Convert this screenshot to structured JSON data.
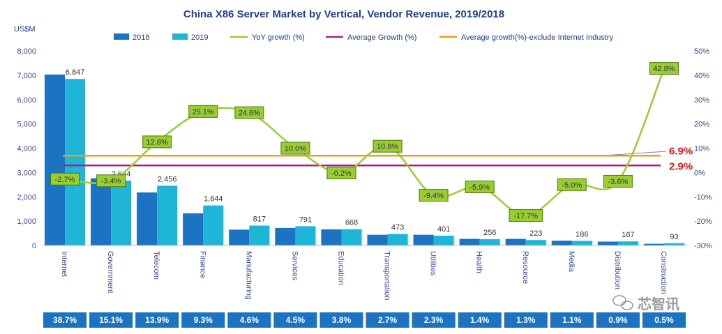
{
  "chart_data": {
    "type": "bar+line",
    "title": "China X86 Server Market by Vertical, Vendor Revenue, 2019/2018",
    "y_unit_label": "US$M",
    "ylim": [
      0,
      8000
    ],
    "y_ticks": [
      "0",
      "1,000",
      "2,000",
      "3,000",
      "4,000",
      "5,000",
      "6,000",
      "7,000",
      "8,000"
    ],
    "y2lim": [
      -30,
      50
    ],
    "y2_ticks": [
      "-30%",
      "-20%",
      "-10%",
      "0%",
      "10%",
      "20%",
      "30%",
      "40%",
      "50%"
    ],
    "categories": [
      "Internet",
      "Government",
      "Telecom",
      "Finance",
      "Manufacturing",
      "Services",
      "Education",
      "Transportation",
      "Utilities",
      "Health",
      "Resource",
      "Media",
      "Distribution",
      "Construction"
    ],
    "series": [
      {
        "name": "2018",
        "values": [
          7030,
          2760,
          2180,
          1320,
          650,
          720,
          660,
          440,
          440,
          270,
          270,
          196,
          158,
          70
        ]
      },
      {
        "name": "2019",
        "values": [
          6847,
          2664,
          2456,
          1644,
          817,
          791,
          668,
          473,
          401,
          256,
          223,
          186,
          167,
          93
        ],
        "labels": [
          "6,847",
          "2,664",
          "2,456",
          "1,644",
          "817",
          "791",
          "668",
          "473",
          "401",
          "256",
          "223",
          "186",
          "167",
          "93"
        ]
      },
      {
        "name": "YoY growth (%)",
        "values": [
          -2.7,
          -3.4,
          12.6,
          25.1,
          24.6,
          10.0,
          -0.2,
          10.8,
          -9.4,
          -5.9,
          -17.7,
          -5.0,
          -3.6,
          42.8
        ],
        "labels": [
          "-2.7%",
          "-3.4%",
          "12.6%",
          "25.1%",
          "24.6%",
          "10.0%",
          "-0.2%",
          "10.8%",
          "-9.4%",
          "-5.9%",
          "-17.7%",
          "-5.0%",
          "-3.6%",
          "42.8%"
        ]
      },
      {
        "name": "Average Growth (%)",
        "value": 2.9,
        "label": "2.9%"
      },
      {
        "name": "Average growth(%)-exclude Internet Industry",
        "value": 6.9,
        "label": "6.9%"
      }
    ],
    "market_share": [
      "38.7%",
      "15.1%",
      "13.9%",
      "9.3%",
      "4.6%",
      "4.5%",
      "3.8%",
      "2.7%",
      "2.3%",
      "1.4%",
      "1.3%",
      "1.1%",
      "0.9%",
      "0.5%"
    ],
    "legend_position": "top"
  },
  "colors": {
    "bar2018": "#1b73c1",
    "bar2019": "#1fb5d6",
    "growth": "#9acd32",
    "growth_label_fill": "#9acd32",
    "growth_label_stroke": "#4a7a0c",
    "avg": "#a0228e",
    "avg_ex": "#f39c12",
    "avg_text": "#e8161b",
    "share_fill": "#1b73c1",
    "title": "#1f3e8c"
  },
  "watermark": "芯智讯"
}
